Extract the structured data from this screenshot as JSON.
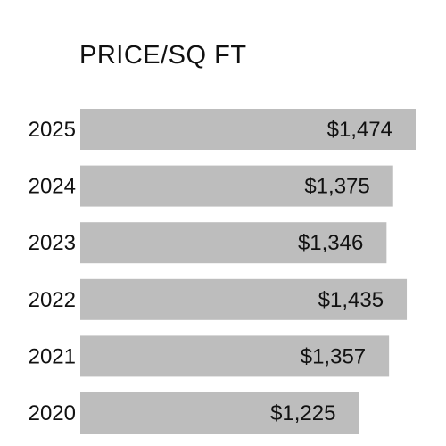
{
  "title": "PRICE/SQ FT",
  "bar_color": "#bdbdbd",
  "text_color": "#111111",
  "chart_data": {
    "type": "bar",
    "orientation": "horizontal",
    "title": "PRICE/SQ FT",
    "categories": [
      "2025",
      "2024",
      "2023",
      "2022",
      "2021",
      "2020"
    ],
    "values": [
      1474,
      1375,
      1346,
      1435,
      1357,
      1225
    ],
    "value_labels": [
      "$1,474",
      "$1,375",
      "$1,346",
      "$1,435",
      "$1,357",
      "$1,225"
    ],
    "xlabel": "",
    "ylabel": "",
    "grid": false,
    "legend": "none"
  }
}
